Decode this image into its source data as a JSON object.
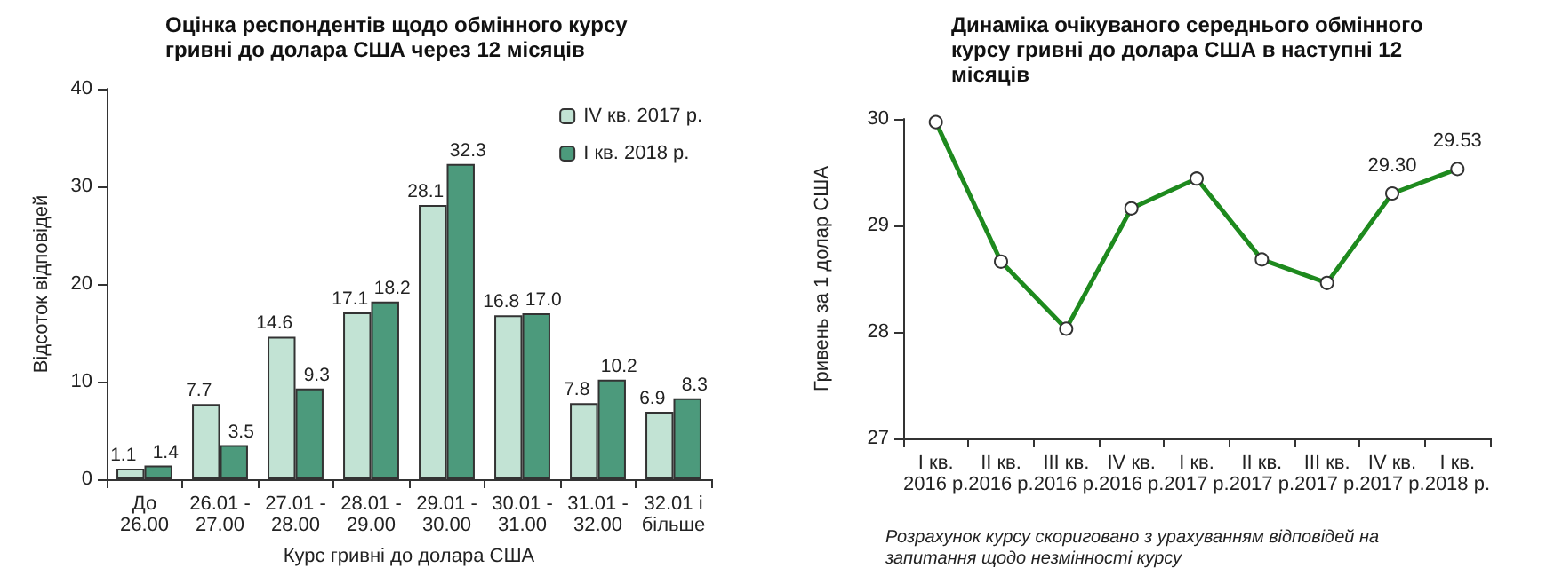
{
  "chart_data": [
    {
      "type": "bar",
      "title": "Оцінка респондентів щодо обмінного курсу\nгривні до долара США через 12 місяців",
      "xlabel": "Курс гривні до долара США",
      "ylabel": "Відсоток відповідей",
      "categories": [
        "До\n26.00",
        "26.01 -\n27.00",
        "27.01 -\n28.00",
        "28.01 -\n29.00",
        "29.01 -\n30.00",
        "30.01 -\n31.00",
        "31.01 -\n32.00",
        "32.01 і\nбільше"
      ],
      "series": [
        {
          "name": "IV кв. 2017 р.",
          "color": "#c2e3d4",
          "values": [
            1.1,
            7.7,
            14.6,
            17.1,
            28.1,
            16.8,
            7.8,
            6.9
          ],
          "value_labels": [
            "1.1",
            "7.7",
            "14.6",
            "17.1",
            "28.1",
            "16.8",
            "7.8",
            "6.9"
          ]
        },
        {
          "name": "I кв. 2018 р.",
          "color": "#4c9a7c",
          "values": [
            1.4,
            3.5,
            9.3,
            18.2,
            32.3,
            17.0,
            10.2,
            8.3
          ],
          "value_labels": [
            "1.4",
            "3.5",
            "9.3",
            "18.2",
            "32.3",
            "17.0",
            "10.2",
            "8.3"
          ]
        }
      ],
      "ylim": [
        0,
        40
      ],
      "yticks": [
        0,
        10,
        20,
        30,
        40
      ],
      "grid": false,
      "legend": "top right"
    },
    {
      "type": "line",
      "title": "Динаміка очікуваного середнього обмінного\nкурсу гривні до долара США в наступні 12\nмісяців",
      "ylabel": "Гривень за 1 долар США",
      "categories": [
        "I кв.\n2016 р.",
        "II кв.\n2016 р.",
        "III кв.\n2016 р.",
        "IV кв.\n2016 р.",
        "I кв.\n2017 р.",
        "II кв.\n2017 р.",
        "III кв.\n2017 р.",
        "IV кв.\n2017 р.",
        "I кв.\n2018 р."
      ],
      "series": [
        {
          "color": "#1e8a1e",
          "values": [
            29.97,
            28.66,
            28.03,
            29.16,
            29.44,
            28.68,
            28.46,
            29.3,
            29.53
          ],
          "value_labels": [
            null,
            null,
            null,
            null,
            null,
            null,
            null,
            "29.30",
            "29.53"
          ]
        }
      ],
      "ylim": [
        27,
        30
      ],
      "yticks": [
        27,
        28,
        29,
        30
      ],
      "grid": false,
      "legend": false,
      "marker": "circle",
      "line_style": "solid",
      "annotations": [
        "Розрахунок курсу скориговано з урахуванням відповідей на\nзапитання щодо незмінності курсу"
      ]
    }
  ]
}
